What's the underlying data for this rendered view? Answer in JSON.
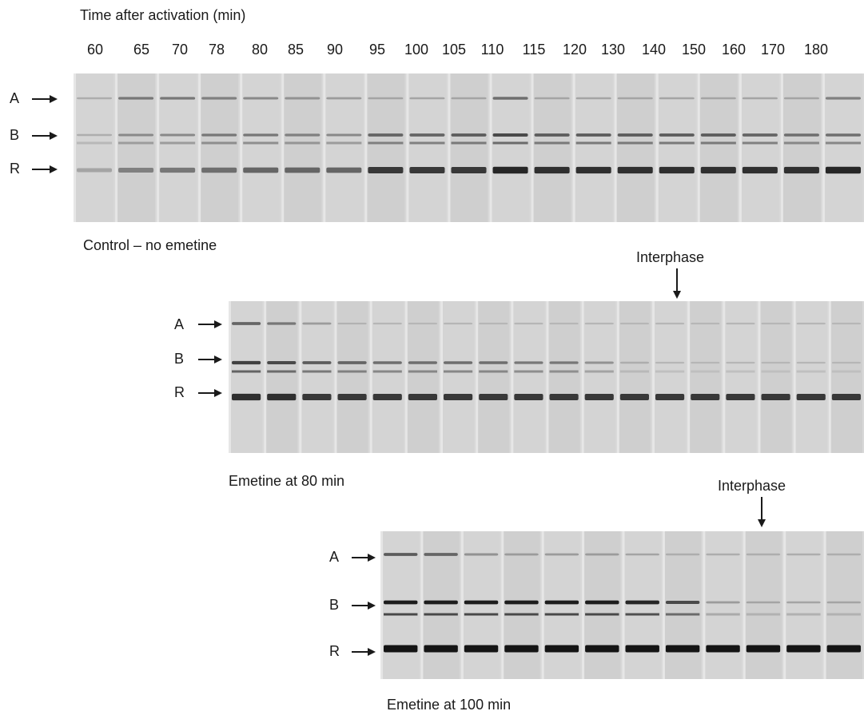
{
  "title": "Time after activation (min)",
  "time_points": [
    "60",
    "65",
    "70",
    "78",
    "80",
    "85",
    "90",
    "95",
    "100",
    "105",
    "110",
    "115",
    "120",
    "130",
    "140",
    "150",
    "160",
    "170",
    "180"
  ],
  "band_labels": [
    "A",
    "B",
    "R"
  ],
  "panels": [
    {
      "id": "control",
      "caption": "Control – no emetine",
      "interphase_label": "",
      "band_intensity": {
        "A": [
          0.15,
          0.45,
          0.45,
          0.4,
          0.35,
          0.3,
          0.25,
          0.2,
          0.2,
          0.2,
          0.5,
          0.2,
          0.2,
          0.2,
          0.2,
          0.2,
          0.2,
          0.2,
          0.4
        ],
        "B": [
          0.15,
          0.35,
          0.35,
          0.45,
          0.45,
          0.4,
          0.35,
          0.55,
          0.55,
          0.6,
          0.7,
          0.6,
          0.6,
          0.6,
          0.6,
          0.6,
          0.55,
          0.5,
          0.5
        ],
        "R": [
          0.2,
          0.4,
          0.45,
          0.5,
          0.55,
          0.55,
          0.55,
          0.8,
          0.8,
          0.8,
          0.9,
          0.85,
          0.85,
          0.85,
          0.85,
          0.85,
          0.85,
          0.85,
          0.9
        ]
      }
    },
    {
      "id": "emetine80",
      "caption": "Emetine at 80 min",
      "interphase_label": "Interphase",
      "band_intensity": {
        "A": [
          0.55,
          0.45,
          0.25,
          0.12,
          0.1,
          0.1,
          0.1,
          0.1,
          0.1,
          0.1,
          0.1,
          0.1,
          0.1,
          0.1,
          0.1,
          0.1,
          0.1,
          0.1
        ],
        "B": [
          0.75,
          0.7,
          0.6,
          0.55,
          0.5,
          0.5,
          0.5,
          0.5,
          0.45,
          0.45,
          0.3,
          0.15,
          0.1,
          0.1,
          0.1,
          0.1,
          0.1,
          0.1
        ],
        "R": [
          0.85,
          0.85,
          0.8,
          0.8,
          0.8,
          0.8,
          0.8,
          0.8,
          0.8,
          0.8,
          0.8,
          0.8,
          0.8,
          0.8,
          0.8,
          0.8,
          0.8,
          0.8
        ]
      }
    },
    {
      "id": "emetine100",
      "caption": "Emetine at 100 min",
      "interphase_label": "Interphase",
      "band_intensity": {
        "A": [
          0.6,
          0.55,
          0.3,
          0.25,
          0.25,
          0.25,
          0.2,
          0.15,
          0.15,
          0.15,
          0.15,
          0.15
        ],
        "B": [
          0.95,
          0.95,
          0.95,
          0.95,
          0.95,
          0.95,
          0.9,
          0.7,
          0.25,
          0.2,
          0.2,
          0.2
        ],
        "R": [
          1,
          1,
          1,
          1,
          1,
          1,
          1,
          1,
          1,
          1,
          1,
          1
        ]
      }
    }
  ]
}
